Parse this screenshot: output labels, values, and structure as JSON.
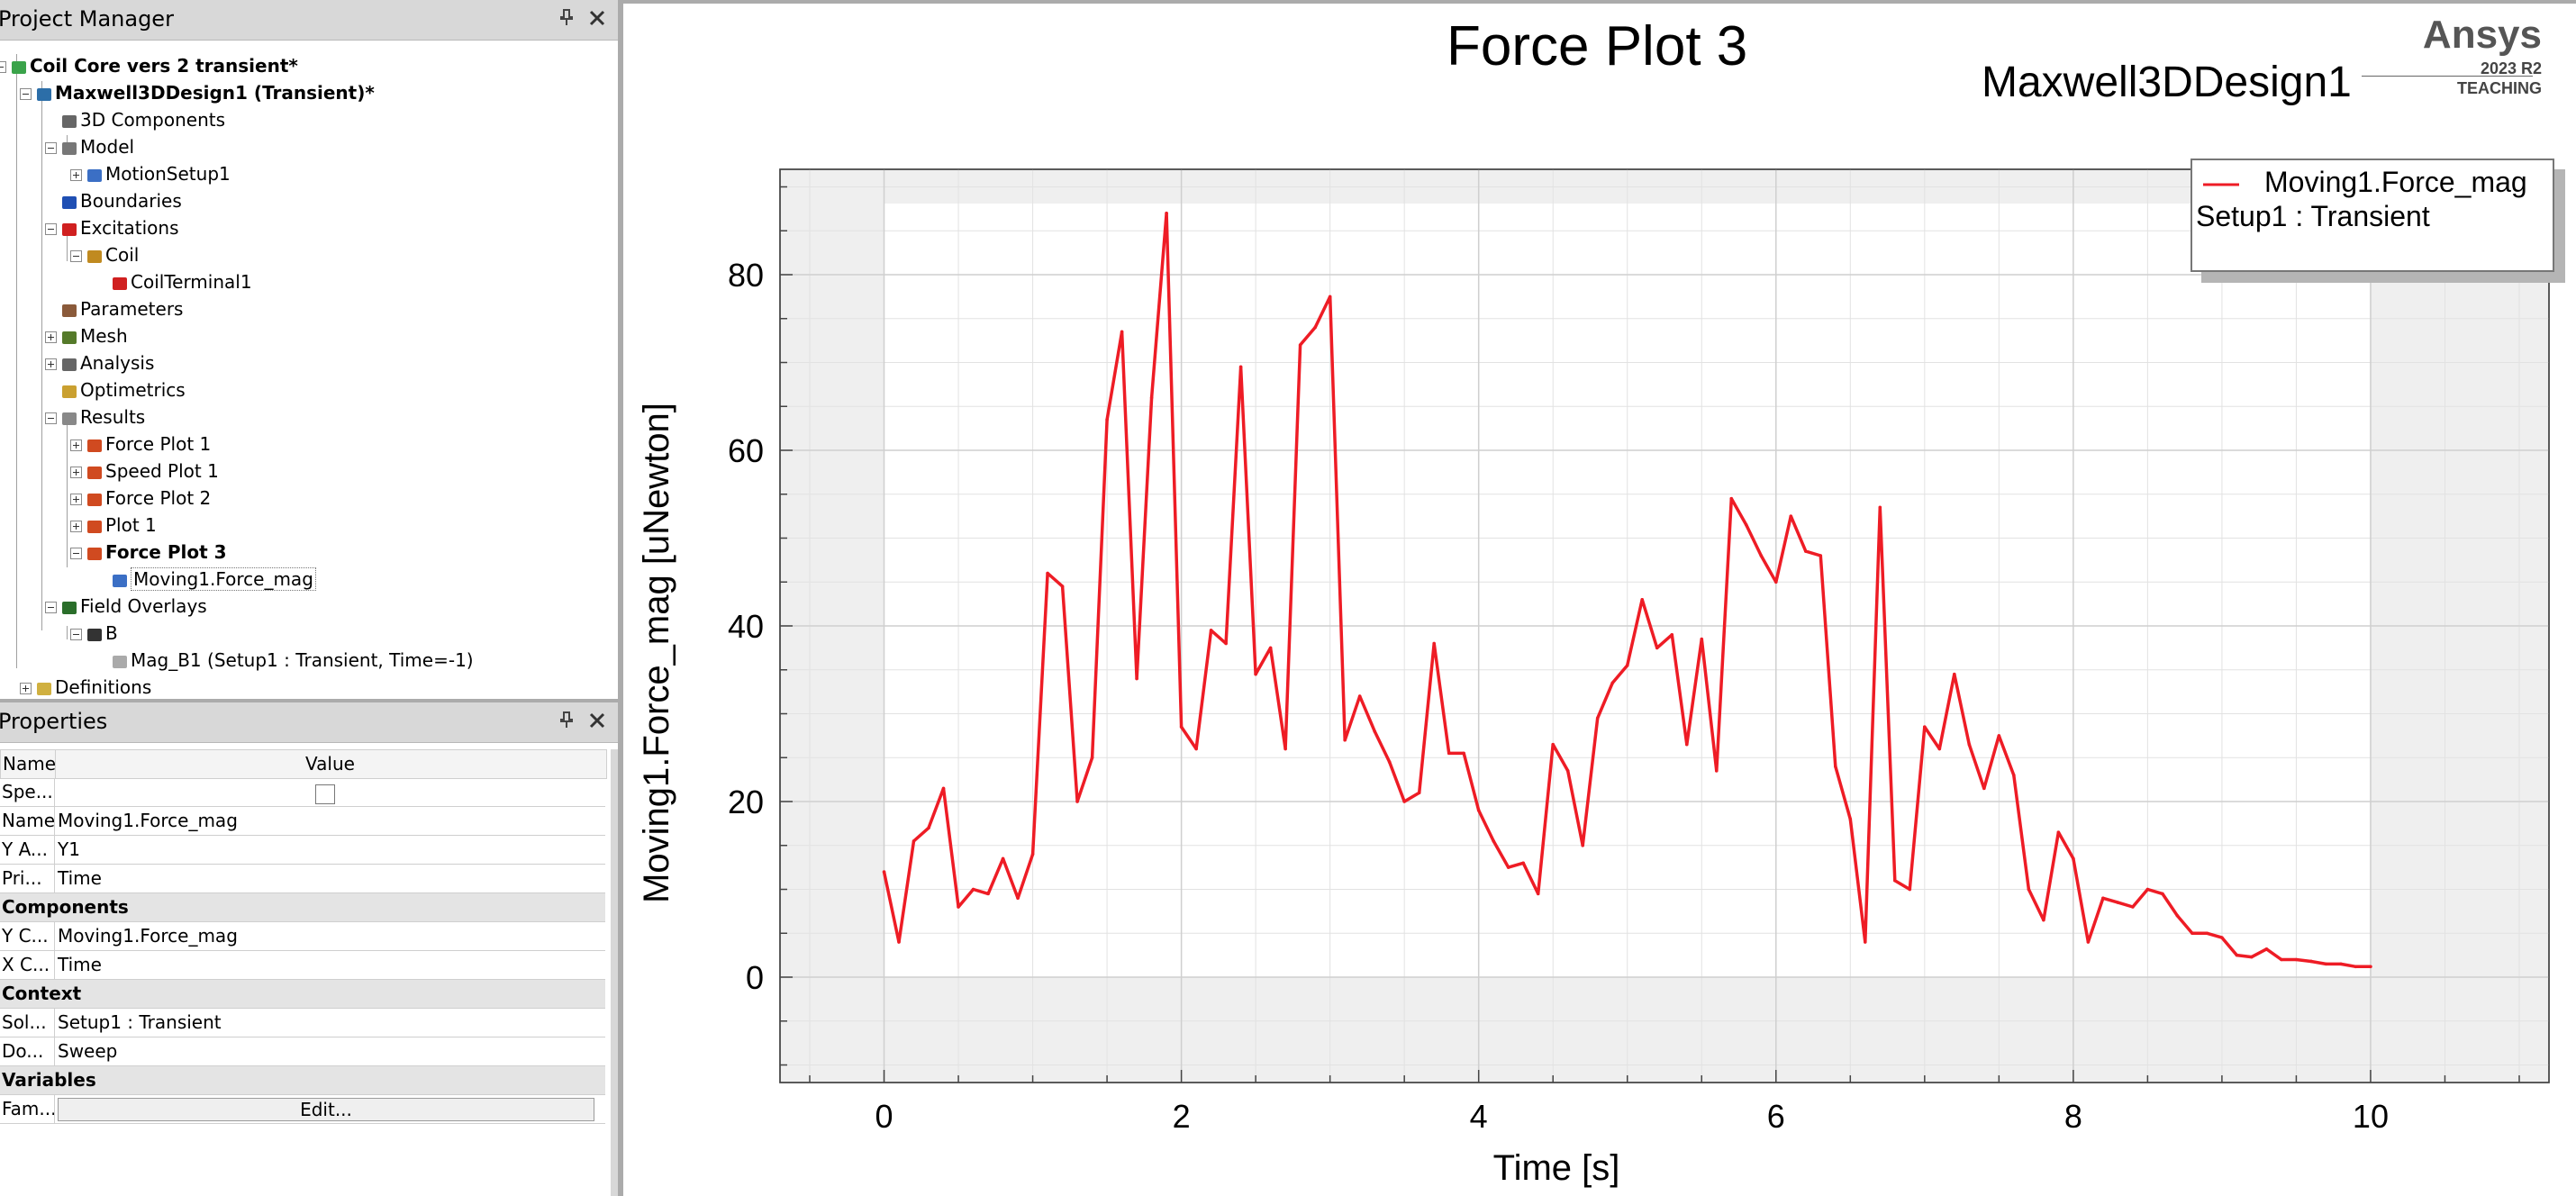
{
  "project_manager": {
    "title": "Project Manager",
    "pin_icon": "pin-icon",
    "close_icon": "close-icon",
    "tree": [
      {
        "label": "Coil Core vers 2 transient*",
        "bold": true
      },
      {
        "label": "Maxwell3DDesign1 (Transient)*",
        "bold": true
      },
      {
        "label": "3D Components"
      },
      {
        "label": "Model"
      },
      {
        "label": "MotionSetup1"
      },
      {
        "label": "Boundaries"
      },
      {
        "label": "Excitations"
      },
      {
        "label": "Coil"
      },
      {
        "label": "CoilTerminal1"
      },
      {
        "label": "Parameters"
      },
      {
        "label": "Mesh"
      },
      {
        "label": "Analysis"
      },
      {
        "label": "Optimetrics"
      },
      {
        "label": "Results"
      },
      {
        "label": "Force Plot 1"
      },
      {
        "label": "Speed Plot 1"
      },
      {
        "label": "Force Plot 2"
      },
      {
        "label": "Plot 1"
      },
      {
        "label": "Force Plot 3",
        "bold": true
      },
      {
        "label": "Moving1.Force_mag",
        "selected": true
      },
      {
        "label": "Field Overlays"
      },
      {
        "label": "B"
      },
      {
        "label": "Mag_B1 (Setup1 : Transient, Time=-1)"
      },
      {
        "label": "Definitions"
      }
    ]
  },
  "properties": {
    "title": "Properties",
    "col_name": "Name",
    "col_value": "Value",
    "rows": [
      {
        "name": "Spe...",
        "value": ""
      },
      {
        "name": "Name",
        "value": "Moving1.Force_mag"
      },
      {
        "name": "Y A...",
        "value": "Y1"
      },
      {
        "name": "Pri...",
        "value": "Time"
      },
      {
        "category": "Components"
      },
      {
        "name": "Y C...",
        "value": "Moving1.Force_mag"
      },
      {
        "name": "X C...",
        "value": "Time"
      },
      {
        "category": "Context"
      },
      {
        "name": "Sol...",
        "value": "Setup1 : Transient"
      },
      {
        "name": "Do...",
        "value": "Sweep"
      },
      {
        "category": "Variables"
      },
      {
        "name": "Fam...",
        "value": "Edit..."
      }
    ]
  },
  "plot": {
    "title": "Force Plot 3",
    "design": "Maxwell3DDesign1",
    "brand": "Ansys",
    "version": "2023 R2",
    "license": "TEACHING",
    "legend_line1": "Moving1.Force_mag",
    "legend_line2": "Setup1 : Transient",
    "series_color": "#ee1c25"
  },
  "chart_data": {
    "type": "line",
    "title": "Force Plot 3",
    "xlabel": "Time [s]",
    "ylabel": "Moving1.Force_mag [uNewton]",
    "xlim": [
      -0.7,
      11.2
    ],
    "ylim": [
      -12,
      92
    ],
    "xticks": [
      0,
      2,
      4,
      6,
      8,
      10
    ],
    "yticks": [
      0,
      20,
      40,
      60,
      80
    ],
    "grid": true,
    "legend": "top-right",
    "series": [
      {
        "name": "Moving1.Force_mag",
        "x": [
          0,
          0.1,
          0.2,
          0.3,
          0.4,
          0.5,
          0.6,
          0.7,
          0.8,
          0.9,
          1.0,
          1.1,
          1.2,
          1.3,
          1.4,
          1.5,
          1.6,
          1.7,
          1.8,
          1.9,
          2.0,
          2.1,
          2.2,
          2.3,
          2.4,
          2.5,
          2.6,
          2.7,
          2.8,
          2.9,
          3.0,
          3.1,
          3.2,
          3.3,
          3.4,
          3.5,
          3.6,
          3.7,
          3.8,
          3.9,
          4.0,
          4.1,
          4.2,
          4.3,
          4.4,
          4.5,
          4.6,
          4.7,
          4.8,
          4.9,
          5.0,
          5.1,
          5.2,
          5.3,
          5.4,
          5.5,
          5.6,
          5.7,
          5.8,
          5.9,
          6.0,
          6.1,
          6.2,
          6.3,
          6.4,
          6.5,
          6.6,
          6.7,
          6.8,
          6.9,
          7.0,
          7.1,
          7.2,
          7.3,
          7.4,
          7.5,
          7.6,
          7.7,
          7.8,
          7.9,
          8.0,
          8.1,
          8.2,
          8.3,
          8.4,
          8.5,
          8.6,
          8.7,
          8.8,
          8.9,
          9.0,
          9.1,
          9.2,
          9.3,
          9.4,
          9.5,
          9.6,
          9.7,
          9.8,
          9.9,
          10.0
        ],
        "y": [
          12,
          4,
          15.5,
          17,
          21.5,
          8,
          10,
          9.5,
          13.5,
          9,
          14,
          46,
          44.5,
          20,
          25,
          63.5,
          73.5,
          34,
          66,
          87,
          28.5,
          26,
          39.5,
          38,
          69.5,
          34.5,
          37.5,
          26,
          72,
          74,
          77.5,
          27,
          32,
          28,
          24.5,
          20,
          21,
          38,
          25.5,
          25.5,
          19,
          15.5,
          12.5,
          13,
          9.5,
          26.5,
          23.5,
          15,
          29.5,
          33.5,
          35.5,
          43,
          37.5,
          39,
          26.5,
          38.5,
          23.5,
          54.5,
          51.5,
          48,
          45,
          52.5,
          48.5,
          48,
          24,
          18,
          4,
          53.5,
          11,
          10,
          28.5,
          26,
          34.5,
          26.5,
          21.5,
          27.5,
          23,
          10,
          6.5,
          16.5,
          13.5,
          4,
          9,
          8.5,
          8,
          10,
          9.5,
          7,
          5,
          5,
          4.5,
          2.5,
          2.3,
          3.2,
          2,
          2,
          1.8,
          1.5,
          1.5,
          1.2,
          1.2
        ]
      }
    ]
  }
}
